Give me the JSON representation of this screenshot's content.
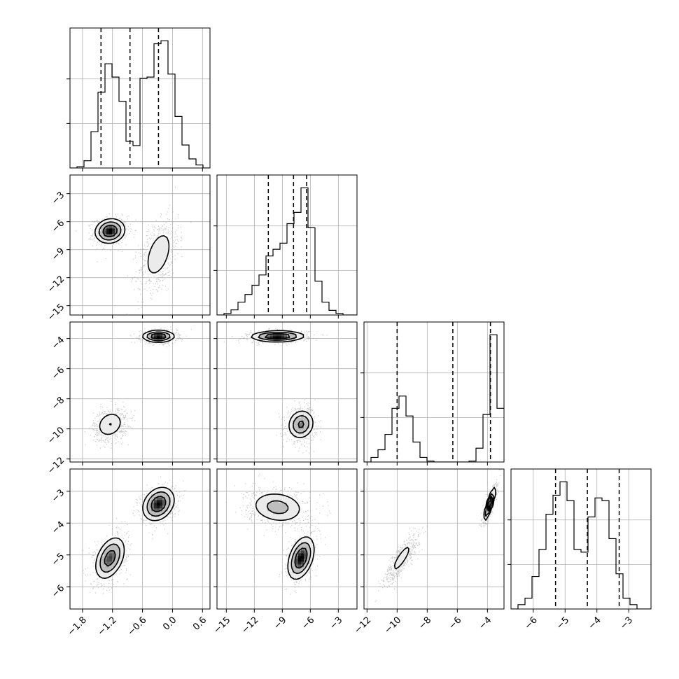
{
  "chart_data": {
    "type": "corner",
    "title": "",
    "layout": "lower-triangular 4x4 grid",
    "grid": true,
    "params": [
      {
        "range": [
          -2.05,
          0.75
        ],
        "ticks": [
          -1.8,
          -1.2,
          -0.6,
          0.0,
          0.6
        ],
        "tick_labels": [
          "−1.8",
          "−1.2",
          "−0.6",
          "0.0",
          "0.6"
        ],
        "quantiles": [
          -1.43,
          -0.85,
          -0.28
        ],
        "modes": [
          {
            "mu": -1.25,
            "sd": 0.18,
            "w": 0.5
          },
          {
            "mu": -0.2,
            "sd": 0.22,
            "w": 0.5
          }
        ]
      },
      {
        "range": [
          -16.0,
          -1.0
        ],
        "ticks": [
          -15,
          -12,
          -9,
          -6,
          -3
        ],
        "tick_labels": [
          "−15",
          "−12",
          "−9",
          "−6",
          "−3"
        ],
        "quantiles": [
          -10.5,
          -7.8,
          -6.4
        ],
        "modes": [
          {
            "mu": -7.0,
            "sd": 0.8,
            "w": 0.5
          },
          {
            "mu": -9.5,
            "sd": 1.9,
            "w": 0.5
          }
        ]
      },
      {
        "range": [
          -12.2,
          -2.9
        ],
        "ticks": [
          -12,
          -10,
          -8,
          -6,
          -4
        ],
        "tick_labels": [
          "−12",
          "−10",
          "−8",
          "−6",
          "−4"
        ],
        "quantiles": [
          -10.0,
          -6.3,
          -3.8
        ],
        "modes": [
          {
            "mu": -9.7,
            "sd": 0.6,
            "w": 0.5
          },
          {
            "mu": -3.85,
            "sd": 0.25,
            "w": 0.5
          }
        ]
      },
      {
        "range": [
          -6.7,
          -2.3
        ],
        "ticks": [
          -6,
          -5,
          -4,
          -3
        ],
        "tick_labels": [
          "−6",
          "−5",
          "−4",
          "−3"
        ],
        "quantiles": [
          -5.3,
          -4.3,
          -3.3
        ],
        "modes": [
          {
            "mu": -5.1,
            "sd": 0.38,
            "w": 0.5
          },
          {
            "mu": -3.4,
            "sd": 0.3,
            "w": 0.5
          }
        ]
      }
    ],
    "histograms_1d": [
      {
        "bin_edges": [
          -2.05,
          -1.91,
          -1.77,
          -1.63,
          -1.49,
          -1.35,
          -1.21,
          -1.07,
          -0.93,
          -0.79,
          -0.65,
          -0.51,
          -0.37,
          -0.23,
          -0.09,
          0.05,
          0.19,
          0.33,
          0.47,
          0.61,
          0.75
        ],
        "counts": [
          0,
          2,
          12,
          60,
          125,
          172,
          150,
          110,
          44,
          37,
          148,
          150,
          205,
          210,
          155,
          85,
          38,
          15,
          5,
          0
        ]
      },
      {
        "bin_edges": [
          -16.0,
          -15.25,
          -14.5,
          -13.75,
          -13.0,
          -12.25,
          -11.5,
          -10.75,
          -10.0,
          -9.25,
          -8.5,
          -7.75,
          -7.0,
          -6.25,
          -5.5,
          -4.75,
          -4.0,
          -3.25,
          -2.5,
          -1.75,
          -1.0
        ],
        "counts": [
          0,
          3,
          10,
          25,
          40,
          58,
          78,
          115,
          128,
          140,
          178,
          200,
          248,
          170,
          66,
          25,
          9,
          3,
          0,
          0
        ]
      },
      {
        "bin_edges": [
          -12.2,
          -11.735,
          -11.27,
          -10.805,
          -10.34,
          -9.875,
          -9.41,
          -8.945,
          -8.48,
          -8.015,
          -7.55,
          -7.085,
          -6.62,
          -6.155,
          -5.69,
          -5.225,
          -4.76,
          -4.295,
          -3.83,
          -3.365,
          -2.9
        ],
        "counts": [
          0,
          15,
          40,
          90,
          175,
          215,
          150,
          65,
          15,
          3,
          0,
          0,
          0,
          0,
          0,
          3,
          45,
          155,
          415,
          175
        ]
      },
      {
        "bin_edges": [
          -6.7,
          -6.48,
          -6.26,
          -6.04,
          -5.82,
          -5.6,
          -5.38,
          -5.16,
          -4.94,
          -4.72,
          -4.5,
          -4.28,
          -4.06,
          -3.84,
          -3.62,
          -3.4,
          -3.18,
          -2.96,
          -2.74,
          -2.52,
          -2.3
        ],
        "counts": [
          0,
          8,
          20,
          60,
          110,
          175,
          210,
          235,
          200,
          110,
          105,
          170,
          205,
          200,
          130,
          65,
          20,
          8,
          0,
          0
        ]
      }
    ],
    "joint_2d": [
      {
        "x": 0,
        "y": 1,
        "modes": [
          {
            "mx": -1.25,
            "my": -7.0,
            "sx": 0.17,
            "sy": 0.75,
            "r": 0.1
          },
          {
            "mx": -0.28,
            "my": -9.5,
            "sx": 0.2,
            "sy": 1.9,
            "r": 0.45
          }
        ]
      },
      {
        "x": 0,
        "y": 2,
        "modes": [
          {
            "mx": -1.25,
            "my": -9.7,
            "sx": 0.17,
            "sy": 0.55,
            "r": 0.2
          },
          {
            "mx": -0.28,
            "my": -3.85,
            "sx": 0.18,
            "sy": 0.22,
            "r": 0.0
          }
        ]
      },
      {
        "x": 1,
        "y": 2,
        "modes": [
          {
            "mx": -7.0,
            "my": -9.7,
            "sx": 0.8,
            "sy": 0.55,
            "r": 0.1
          },
          {
            "mx": -9.5,
            "my": -3.85,
            "sx": 1.6,
            "sy": 0.2,
            "r": 0.05
          }
        ]
      },
      {
        "x": 0,
        "y": 3,
        "modes": [
          {
            "mx": -1.25,
            "my": -5.1,
            "sx": 0.17,
            "sy": 0.38,
            "r": 0.4
          },
          {
            "mx": -0.28,
            "my": -3.4,
            "sx": 0.18,
            "sy": 0.3,
            "r": 0.25
          }
        ]
      },
      {
        "x": 1,
        "y": 3,
        "modes": [
          {
            "mx": -7.0,
            "my": -5.1,
            "sx": 0.8,
            "sy": 0.38,
            "r": 0.4
          },
          {
            "mx": -9.5,
            "my": -3.5,
            "sx": 1.7,
            "sy": 0.3,
            "r": -0.15
          }
        ]
      },
      {
        "x": 2,
        "y": 3,
        "modes": [
          {
            "mx": -9.7,
            "my": -5.1,
            "sx": 0.55,
            "sy": 0.38,
            "r": 0.85
          },
          {
            "mx": -3.85,
            "my": -3.4,
            "sx": 0.22,
            "sy": 0.3,
            "r": 0.85
          }
        ]
      }
    ],
    "colors": {
      "frame": "#000000",
      "grid": "#b0b0b0",
      "scatter": "#9a9a9a",
      "density": "#000000",
      "fill": "#ffffff"
    }
  }
}
